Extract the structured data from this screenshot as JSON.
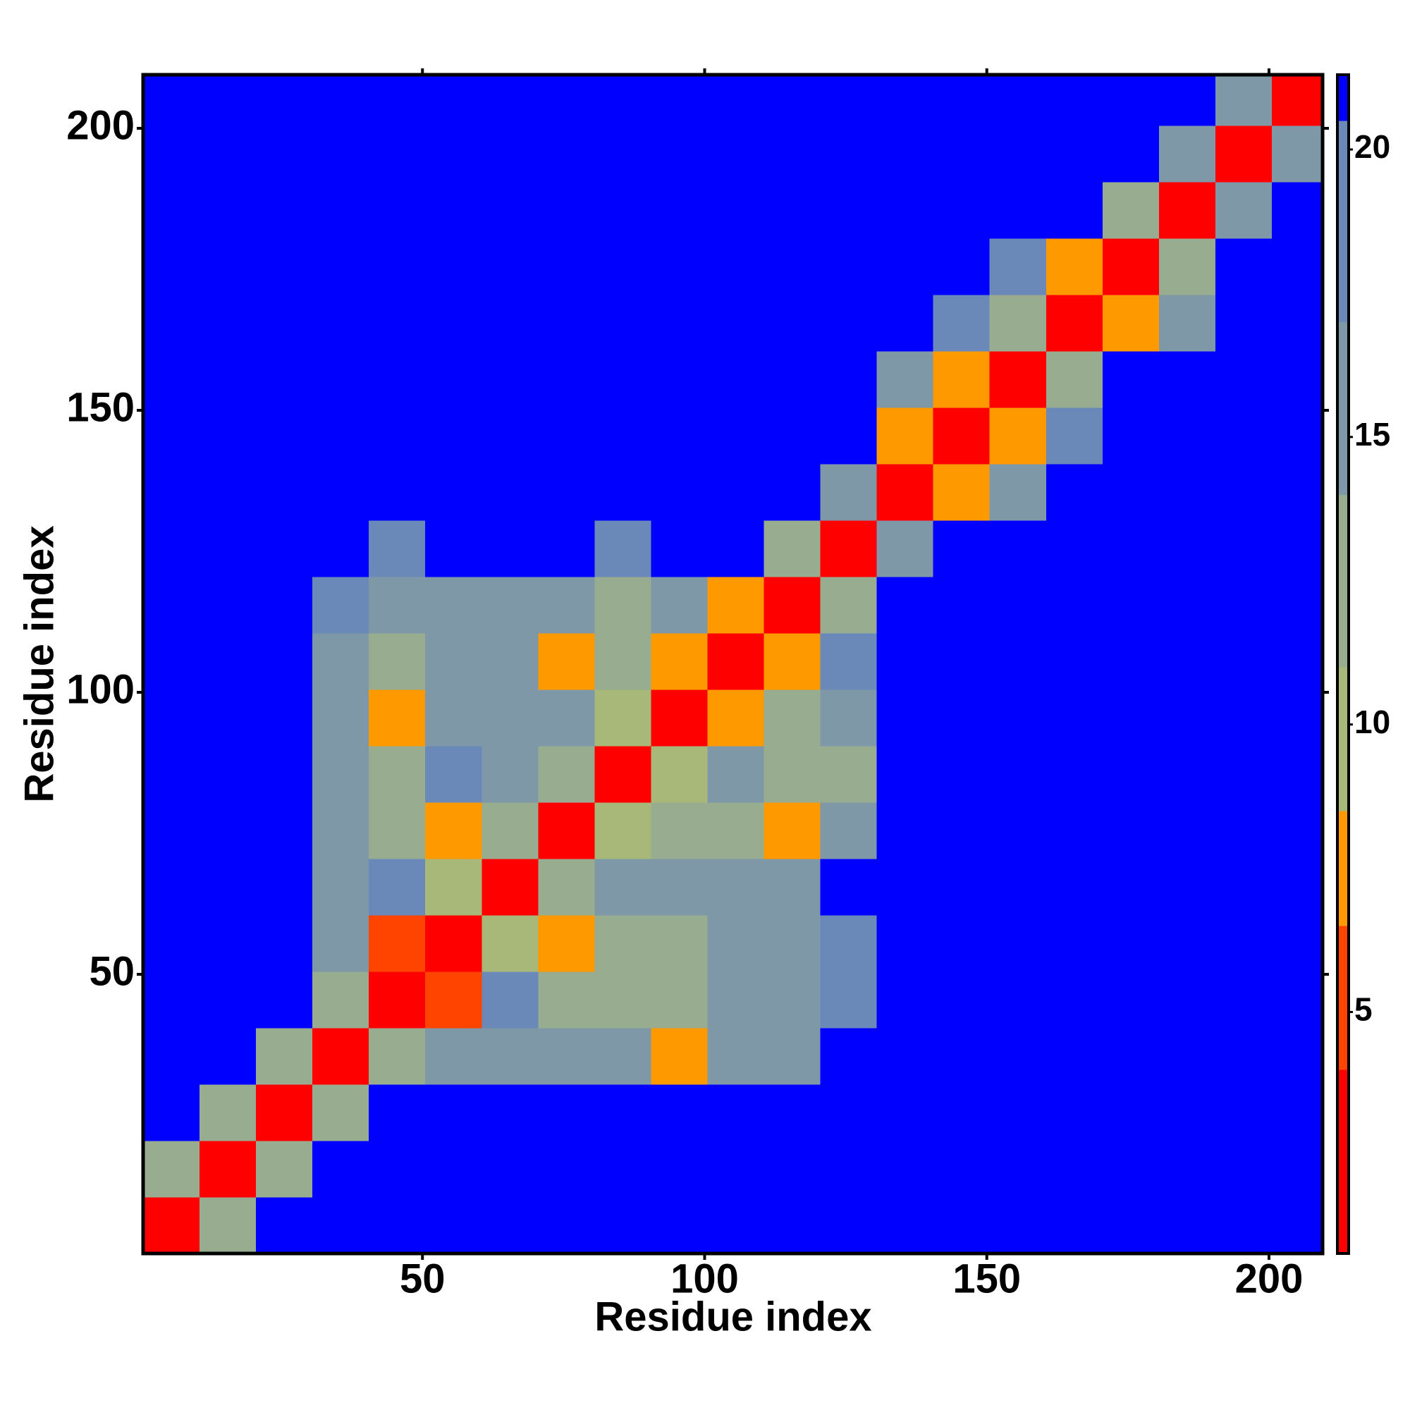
{
  "chart_data": {
    "type": "heatmap",
    "xlabel": "Residue index",
    "ylabel": "Residue index",
    "xlim": [
      0.5,
      209.5
    ],
    "ylim": [
      0.5,
      209.5
    ],
    "xticks": [
      50,
      100,
      150,
      200
    ],
    "yticks": [
      50,
      100,
      150,
      200
    ],
    "x_bins": [
      0.5,
      10.5,
      20.5,
      30.5,
      40.5,
      50.5,
      60.5,
      70.5,
      80.5,
      90.5,
      100.5,
      110.5,
      120.5,
      130.5,
      140.5,
      150.5,
      160.5,
      170.5,
      180.5,
      190.5,
      200.5,
      209.5
    ],
    "y_bins": [
      0.5,
      10.5,
      20.5,
      30.5,
      40.5,
      50.5,
      60.5,
      70.5,
      80.5,
      90.5,
      100.5,
      110.5,
      120.5,
      130.5,
      140.5,
      150.5,
      160.5,
      170.5,
      180.5,
      190.5,
      200.5,
      209.5
    ],
    "z": [
      [
        3,
        14,
        21,
        21,
        21,
        21,
        21,
        21,
        21,
        21,
        21,
        21,
        21,
        21,
        21,
        21,
        21,
        21,
        21,
        21,
        21
      ],
      [
        14,
        3,
        14,
        21,
        21,
        21,
        21,
        21,
        21,
        21,
        21,
        21,
        21,
        21,
        21,
        21,
        21,
        21,
        21,
        21,
        21
      ],
      [
        21,
        14,
        3,
        12,
        21,
        21,
        21,
        21,
        21,
        21,
        21,
        21,
        21,
        21,
        21,
        21,
        21,
        21,
        21,
        21,
        21
      ],
      [
        21,
        21,
        12,
        3,
        12,
        15,
        17,
        16,
        15,
        7,
        16,
        17,
        21,
        21,
        21,
        21,
        21,
        21,
        21,
        21,
        21
      ],
      [
        21,
        21,
        21,
        12,
        3,
        6,
        19,
        14,
        12,
        12,
        15,
        16,
        19,
        21,
        21,
        21,
        21,
        21,
        21,
        21,
        21
      ],
      [
        21,
        21,
        21,
        15,
        6,
        3,
        10,
        7,
        14,
        14,
        15,
        15,
        19,
        21,
        21,
        21,
        21,
        21,
        21,
        21,
        21
      ],
      [
        21,
        21,
        21,
        17,
        19,
        10,
        3,
        12,
        16,
        16,
        15,
        16,
        21,
        21,
        21,
        21,
        21,
        21,
        21,
        21,
        21
      ],
      [
        21,
        21,
        21,
        16,
        13,
        7,
        12,
        3,
        10,
        14,
        13,
        7,
        17,
        21,
        21,
        21,
        21,
        21,
        21,
        21,
        21
      ],
      [
        21,
        21,
        21,
        16,
        14,
        18,
        16,
        13,
        3,
        10,
        16,
        12,
        12,
        21,
        21,
        21,
        21,
        21,
        21,
        21,
        21
      ],
      [
        21,
        21,
        21,
        15,
        7,
        15,
        16,
        15,
        10,
        3,
        7,
        12,
        17,
        21,
        21,
        21,
        21,
        21,
        21,
        21,
        21
      ],
      [
        21,
        21,
        21,
        15,
        14,
        15,
        15,
        7,
        14,
        7,
        3,
        7,
        18,
        21,
        21,
        21,
        21,
        21,
        21,
        21,
        21
      ],
      [
        21,
        21,
        21,
        19,
        16,
        17,
        16,
        16,
        13,
        17,
        7,
        3,
        14,
        21,
        21,
        21,
        21,
        21,
        21,
        21,
        21
      ],
      [
        21,
        21,
        21,
        21,
        18,
        21,
        21,
        21,
        19,
        21,
        21,
        14,
        3,
        15,
        21,
        21,
        21,
        21,
        21,
        21,
        21
      ],
      [
        21,
        21,
        21,
        21,
        21,
        21,
        21,
        21,
        21,
        21,
        21,
        21,
        15,
        3,
        7,
        17,
        21,
        21,
        21,
        21,
        21
      ],
      [
        21,
        21,
        21,
        21,
        21,
        21,
        21,
        21,
        21,
        21,
        21,
        21,
        21,
        7,
        3,
        7,
        19,
        21,
        21,
        21,
        21
      ],
      [
        21,
        21,
        21,
        21,
        21,
        21,
        21,
        21,
        21,
        21,
        21,
        21,
        21,
        17,
        7,
        3,
        13,
        21,
        21,
        21,
        21
      ],
      [
        21,
        21,
        21,
        21,
        21,
        21,
        21,
        21,
        21,
        21,
        21,
        21,
        21,
        21,
        19,
        13,
        3,
        7,
        16,
        21,
        21
      ],
      [
        21,
        21,
        21,
        21,
        21,
        21,
        21,
        21,
        21,
        21,
        21,
        21,
        21,
        21,
        21,
        18,
        7,
        3,
        13,
        21,
        21
      ],
      [
        21,
        21,
        21,
        21,
        21,
        21,
        21,
        21,
        21,
        21,
        21,
        21,
        21,
        21,
        21,
        21,
        21,
        13,
        3,
        15,
        21
      ],
      [
        21,
        21,
        21,
        21,
        21,
        21,
        21,
        21,
        21,
        21,
        21,
        21,
        21,
        21,
        21,
        21,
        21,
        21,
        15,
        3,
        15
      ],
      [
        21,
        21,
        21,
        21,
        21,
        21,
        21,
        21,
        21,
        21,
        21,
        21,
        21,
        21,
        21,
        21,
        21,
        21,
        21,
        15,
        3
      ]
    ],
    "colorbar": {
      "lim": [
        0.8,
        21.3
      ],
      "ticks": [
        5,
        10,
        15,
        20
      ],
      "levels": [
        0.8,
        4,
        6.5,
        8.5,
        11,
        14,
        17,
        20.5,
        21.3
      ],
      "colors": [
        "#ff0000",
        "#ff4400",
        "#ff9900",
        "#a8b878",
        "#98ac90",
        "#7e98a8",
        "#6a88b8",
        "#0000ff"
      ]
    }
  }
}
